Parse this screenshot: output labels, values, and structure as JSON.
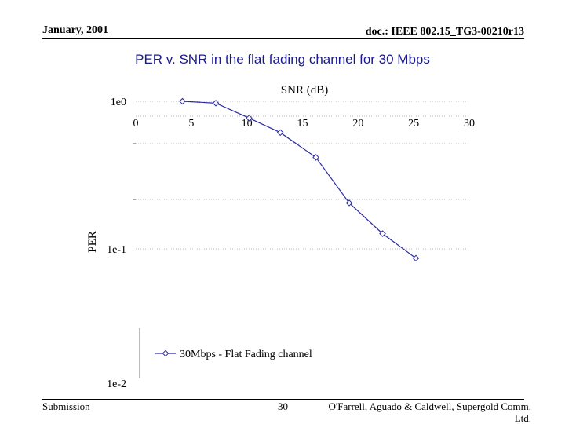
{
  "header": {
    "date": "January, 2001",
    "doc_id": "doc.: IEEE 802.15_TG3-00210r13"
  },
  "slide_title": "PER v. SNR in the flat fading channel for 30 Mbps",
  "footer": {
    "left": "Submission",
    "page_number": "30",
    "authors": "O'Farrell, Aguado & Caldwell, Supergold Comm. Ltd."
  },
  "chart_data": {
    "type": "line",
    "title": "",
    "xlabel": "SNR (dB)",
    "ylabel": "PER",
    "x_axis_position": "top",
    "xlim": [
      0,
      30
    ],
    "x_ticks": [
      0,
      5,
      10,
      15,
      20,
      25,
      30
    ],
    "x_tick_labels": [
      "0",
      "5",
      "10",
      "15",
      "20",
      "25",
      "30"
    ],
    "y_scale": "log",
    "ylim": [
      0.01,
      1
    ],
    "y_tick_labels": [
      "1e0",
      "1e-1",
      "1e-2"
    ],
    "grid": true,
    "legend_position": "bottom-center",
    "series": [
      {
        "name": "30Mbps - Flat Fading channel",
        "color": "#2a2aa0",
        "marker": "diamond",
        "x": [
          4.2,
          7.2,
          10.2,
          13.0,
          16.2,
          19.2,
          22.2,
          25.2
        ],
        "y": [
          1.0,
          0.97,
          0.76,
          0.6,
          0.4,
          0.19,
          0.115,
          0.077
        ]
      }
    ]
  }
}
